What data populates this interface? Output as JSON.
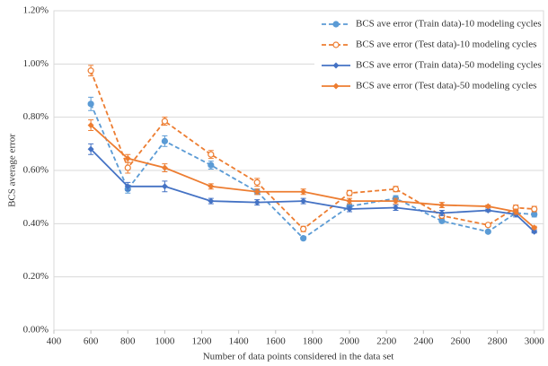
{
  "chart_data": {
    "type": "line",
    "y_label": "BCS average error",
    "x_label": "Number of data points considered in the data set",
    "x": [
      600,
      800,
      1000,
      1250,
      1500,
      1750,
      2000,
      2250,
      2500,
      2750,
      2900,
      3000
    ],
    "series": [
      {
        "name": "BCS ave error (Train data)-10 modeling cycles",
        "color": "#5b9bd5",
        "line_style": "dashed",
        "marker": "filled-circle",
        "values": [
          0.85,
          0.53,
          0.71,
          0.62,
          0.52,
          0.345,
          0.465,
          0.495,
          0.41,
          0.37,
          0.44,
          0.435
        ],
        "errors": [
          0.025,
          0.015,
          0.02,
          0.015,
          0.01,
          0.005,
          0.01,
          0.01,
          0.005,
          0.005,
          0.01,
          0.01
        ]
      },
      {
        "name": "BCS ave error (Test data)-10 modeling cycles",
        "color": "#ed7d31",
        "line_style": "dashed",
        "marker": "open-circle",
        "values": [
          0.975,
          0.61,
          0.785,
          0.66,
          0.555,
          0.38,
          0.515,
          0.53,
          0.43,
          0.395,
          0.46,
          0.455
        ],
        "errors": [
          0.02,
          0.02,
          0.015,
          0.015,
          0.015,
          0.01,
          0.01,
          0.01,
          0.01,
          0.005,
          0.01,
          0.01
        ]
      },
      {
        "name": "BCS ave error (Train data)-50 modeling cycles",
        "color": "#4472c4",
        "line_style": "solid",
        "marker": "diamond",
        "values": [
          0.68,
          0.54,
          0.54,
          0.485,
          0.48,
          0.485,
          0.455,
          0.46,
          0.44,
          0.45,
          0.435,
          0.37
        ],
        "errors": [
          0.02,
          0.015,
          0.02,
          0.01,
          0.01,
          0.01,
          0.01,
          0.01,
          0.01,
          0.005,
          0.01,
          0.005
        ]
      },
      {
        "name": "BCS ave error (Test data)-50 modeling cycles",
        "color": "#ed7d31",
        "line_style": "solid",
        "marker": "diamond",
        "values": [
          0.77,
          0.645,
          0.61,
          0.54,
          0.52,
          0.52,
          0.485,
          0.485,
          0.47,
          0.465,
          0.445,
          0.385
        ],
        "errors": [
          0.02,
          0.015,
          0.015,
          0.01,
          0.01,
          0.01,
          0.01,
          0.01,
          0.01,
          0.005,
          0.01,
          0.005
        ]
      }
    ],
    "xlim": [
      400,
      3050
    ],
    "xticks": [
      400,
      600,
      800,
      1000,
      1200,
      1400,
      1600,
      1800,
      2000,
      2200,
      2400,
      2600,
      2800,
      3000
    ],
    "ylim": [
      0,
      1.2
    ],
    "yticks": [
      {
        "value": 0,
        "label": "0.00%"
      },
      {
        "value": 0.2,
        "label": "0.20%"
      },
      {
        "value": 0.4,
        "label": "0.40%"
      },
      {
        "value": 0.6,
        "label": "0.60%"
      },
      {
        "value": 0.8,
        "label": "0.80%"
      },
      {
        "value": 1.0,
        "label": "1.00%"
      },
      {
        "value": 1.2,
        "label": "1.20%"
      }
    ],
    "grid": true,
    "legend": "top-right"
  }
}
